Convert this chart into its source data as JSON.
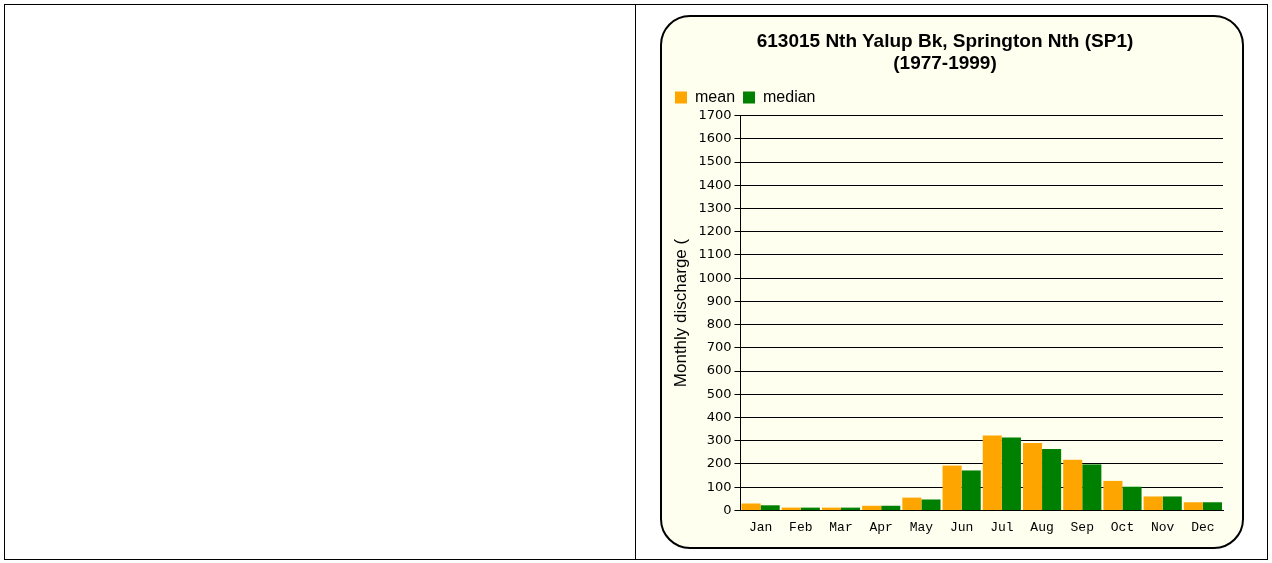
{
  "chart_data": {
    "type": "bar",
    "title": "613015 Nth Yalup Bk, Springton Nth (SP1)\n(1977-1999)",
    "ylabel": "Monthly discharge (",
    "categories": [
      "Jan",
      "Feb",
      "Mar",
      "Apr",
      "May",
      "Jun",
      "Jul",
      "Aug",
      "Sep",
      "Oct",
      "Nov",
      "Dec"
    ],
    "series": [
      {
        "name": "mean",
        "color": "#ffa500",
        "values": [
          30,
          12,
          12,
          20,
          55,
          193,
          322,
          290,
          218,
          127,
          60,
          35
        ]
      },
      {
        "name": "median",
        "color": "#008000",
        "values": [
          22,
          12,
          12,
          20,
          47,
          172,
          314,
          264,
          198,
          102,
          60,
          35
        ]
      }
    ],
    "ylim": [
      0,
      1700
    ],
    "yticks": [
      0,
      100,
      200,
      300,
      400,
      500,
      600,
      700,
      800,
      900,
      1000,
      1100,
      1200,
      1300,
      1400,
      1500,
      1600,
      1700
    ],
    "grid": "y",
    "legend": "top left"
  }
}
